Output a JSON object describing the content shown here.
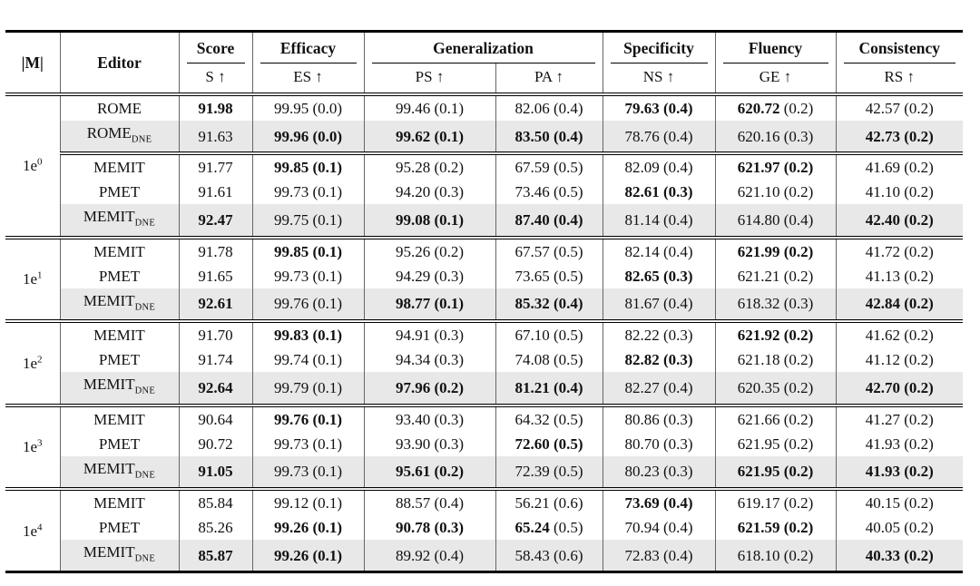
{
  "table": {
    "header": {
      "m_label": "|M|",
      "editor_label": "Editor",
      "metric_keys": [
        "s",
        "es",
        "ps",
        "pa",
        "ns",
        "ge",
        "rs"
      ],
      "metric_groups": [
        {
          "label": "Score",
          "subs": [
            "S ↑"
          ]
        },
        {
          "label": "Efficacy",
          "subs": [
            "ES ↑"
          ]
        },
        {
          "label": "Generalization",
          "subs": [
            "PS ↑",
            "PA ↑"
          ]
        },
        {
          "label": "Specificity",
          "subs": [
            "NS ↑"
          ]
        },
        {
          "label": "Fluency",
          "subs": [
            "GE ↑"
          ]
        },
        {
          "label": "Consistency",
          "subs": [
            "RS ↑"
          ]
        }
      ]
    },
    "colors": {
      "row_highlight": "#e8e8e8",
      "rule": "#000000",
      "divider": "#666666"
    },
    "bold_flag_legend": "0 = regular, 1 = value and stderr bold, 2 = value bold only",
    "groups": [
      {
        "size": "1e",
        "exp": "0",
        "rows": [
          {
            "editor": "ROME",
            "sub": "",
            "shaded": false,
            "cline": false,
            "cells": [
              [
                "91.98",
                "",
                1
              ],
              [
                "99.95",
                "(0.0)",
                0
              ],
              [
                "99.46",
                "(0.1)",
                0
              ],
              [
                "82.06",
                "(0.4)",
                0
              ],
              [
                "79.63",
                "(0.4)",
                1
              ],
              [
                "620.72",
                "(0.2)",
                2
              ],
              [
                "42.57",
                "(0.2)",
                0
              ]
            ]
          },
          {
            "editor": "ROME",
            "sub": "DNE",
            "shaded": true,
            "cline": false,
            "cells": [
              [
                "91.63",
                "",
                0
              ],
              [
                "99.96",
                "(0.0)",
                1
              ],
              [
                "99.62",
                "(0.1)",
                1
              ],
              [
                "83.50",
                "(0.4)",
                1
              ],
              [
                "78.76",
                "(0.4)",
                0
              ],
              [
                "620.16",
                "(0.3)",
                0
              ],
              [
                "42.73",
                "(0.2)",
                1
              ]
            ]
          },
          {
            "editor": "MEMIT",
            "sub": "",
            "shaded": false,
            "cline": true,
            "cells": [
              [
                "91.77",
                "",
                0
              ],
              [
                "99.85",
                "(0.1)",
                1
              ],
              [
                "95.28",
                "(0.2)",
                0
              ],
              [
                "67.59",
                "(0.5)",
                0
              ],
              [
                "82.09",
                "(0.4)",
                0
              ],
              [
                "621.97",
                "(0.2)",
                1
              ],
              [
                "41.69",
                "(0.2)",
                0
              ]
            ]
          },
          {
            "editor": "PMET",
            "sub": "",
            "shaded": false,
            "cline": false,
            "cells": [
              [
                "91.61",
                "",
                0
              ],
              [
                "99.73",
                "(0.1)",
                0
              ],
              [
                "94.20",
                "(0.3)",
                0
              ],
              [
                "73.46",
                "(0.5)",
                0
              ],
              [
                "82.61",
                "(0.3)",
                1
              ],
              [
                "621.10",
                "(0.2)",
                0
              ],
              [
                "41.10",
                "(0.2)",
                0
              ]
            ]
          },
          {
            "editor": "MEMIT",
            "sub": "DNE",
            "shaded": true,
            "cline": false,
            "cells": [
              [
                "92.47",
                "",
                1
              ],
              [
                "99.75",
                "(0.1)",
                0
              ],
              [
                "99.08",
                "(0.1)",
                1
              ],
              [
                "87.40",
                "(0.4)",
                1
              ],
              [
                "81.14",
                "(0.4)",
                0
              ],
              [
                "614.80",
                "(0.4)",
                0
              ],
              [
                "42.40",
                "(0.2)",
                1
              ]
            ]
          }
        ]
      },
      {
        "size": "1e",
        "exp": "1",
        "rows": [
          {
            "editor": "MEMIT",
            "sub": "",
            "shaded": false,
            "cline": false,
            "cells": [
              [
                "91.78",
                "",
                0
              ],
              [
                "99.85",
                "(0.1)",
                1
              ],
              [
                "95.26",
                "(0.2)",
                0
              ],
              [
                "67.57",
                "(0.5)",
                0
              ],
              [
                "82.14",
                "(0.4)",
                0
              ],
              [
                "621.99",
                "(0.2)",
                1
              ],
              [
                "41.72",
                "(0.2)",
                0
              ]
            ]
          },
          {
            "editor": "PMET",
            "sub": "",
            "shaded": false,
            "cline": false,
            "cells": [
              [
                "91.65",
                "",
                0
              ],
              [
                "99.73",
                "(0.1)",
                0
              ],
              [
                "94.29",
                "(0.3)",
                0
              ],
              [
                "73.65",
                "(0.5)",
                0
              ],
              [
                "82.65",
                "(0.3)",
                1
              ],
              [
                "621.21",
                "(0.2)",
                0
              ],
              [
                "41.13",
                "(0.2)",
                0
              ]
            ]
          },
          {
            "editor": "MEMIT",
            "sub": "DNE",
            "shaded": true,
            "cline": false,
            "cells": [
              [
                "92.61",
                "",
                1
              ],
              [
                "99.76",
                "(0.1)",
                0
              ],
              [
                "98.77",
                "(0.1)",
                1
              ],
              [
                "85.32",
                "(0.4)",
                1
              ],
              [
                "81.67",
                "(0.4)",
                0
              ],
              [
                "618.32",
                "(0.3)",
                0
              ],
              [
                "42.84",
                "(0.2)",
                1
              ]
            ]
          }
        ]
      },
      {
        "size": "1e",
        "exp": "2",
        "rows": [
          {
            "editor": "MEMIT",
            "sub": "",
            "shaded": false,
            "cline": false,
            "cells": [
              [
                "91.70",
                "",
                0
              ],
              [
                "99.83",
                "(0.1)",
                1
              ],
              [
                "94.91",
                "(0.3)",
                0
              ],
              [
                "67.10",
                "(0.5)",
                0
              ],
              [
                "82.22",
                "(0.3)",
                0
              ],
              [
                "621.92",
                "(0.2)",
                1
              ],
              [
                "41.62",
                "(0.2)",
                0
              ]
            ]
          },
          {
            "editor": "PMET",
            "sub": "",
            "shaded": false,
            "cline": false,
            "cells": [
              [
                "91.74",
                "",
                0
              ],
              [
                "99.74",
                "(0.1)",
                0
              ],
              [
                "94.34",
                "(0.3)",
                0
              ],
              [
                "74.08",
                "(0.5)",
                0
              ],
              [
                "82.82",
                "(0.3)",
                1
              ],
              [
                "621.18",
                "(0.2)",
                0
              ],
              [
                "41.12",
                "(0.2)",
                0
              ]
            ]
          },
          {
            "editor": "MEMIT",
            "sub": "DNE",
            "shaded": true,
            "cline": false,
            "cells": [
              [
                "92.64",
                "",
                1
              ],
              [
                "99.79",
                "(0.1)",
                0
              ],
              [
                "97.96",
                "(0.2)",
                1
              ],
              [
                "81.21",
                "(0.4)",
                1
              ],
              [
                "82.27",
                "(0.4)",
                0
              ],
              [
                "620.35",
                "(0.2)",
                0
              ],
              [
                "42.70",
                "(0.2)",
                1
              ]
            ]
          }
        ]
      },
      {
        "size": "1e",
        "exp": "3",
        "rows": [
          {
            "editor": "MEMIT",
            "sub": "",
            "shaded": false,
            "cline": false,
            "cells": [
              [
                "90.64",
                "",
                0
              ],
              [
                "99.76",
                "(0.1)",
                1
              ],
              [
                "93.40",
                "(0.3)",
                0
              ],
              [
                "64.32",
                "(0.5)",
                0
              ],
              [
                "80.86",
                "(0.3)",
                0
              ],
              [
                "621.66",
                "(0.2)",
                0
              ],
              [
                "41.27",
                "(0.2)",
                0
              ]
            ]
          },
          {
            "editor": "PMET",
            "sub": "",
            "shaded": false,
            "cline": false,
            "cells": [
              [
                "90.72",
                "",
                0
              ],
              [
                "99.73",
                "(0.1)",
                0
              ],
              [
                "93.90",
                "(0.3)",
                0
              ],
              [
                "72.60",
                "(0.5)",
                1
              ],
              [
                "80.70",
                "(0.3)",
                0
              ],
              [
                "621.95",
                "(0.2)",
                0
              ],
              [
                "41.93",
                "(0.2)",
                0
              ]
            ]
          },
          {
            "editor": "MEMIT",
            "sub": "DNE",
            "shaded": true,
            "cline": false,
            "cells": [
              [
                "91.05",
                "",
                1
              ],
              [
                "99.73",
                "(0.1)",
                0
              ],
              [
                "95.61",
                "(0.2)",
                1
              ],
              [
                "72.39",
                "(0.5)",
                0
              ],
              [
                "80.23",
                "(0.3)",
                0
              ],
              [
                "621.95",
                "(0.2)",
                1
              ],
              [
                "41.93",
                "(0.2)",
                1
              ]
            ]
          }
        ]
      },
      {
        "size": "1e",
        "exp": "4",
        "rows": [
          {
            "editor": "MEMIT",
            "sub": "",
            "shaded": false,
            "cline": false,
            "cells": [
              [
                "85.84",
                "",
                0
              ],
              [
                "99.12",
                "(0.1)",
                0
              ],
              [
                "88.57",
                "(0.4)",
                0
              ],
              [
                "56.21",
                "(0.6)",
                0
              ],
              [
                "73.69",
                "(0.4)",
                1
              ],
              [
                "619.17",
                "(0.2)",
                0
              ],
              [
                "40.15",
                "(0.2)",
                0
              ]
            ]
          },
          {
            "editor": "PMET",
            "sub": "",
            "shaded": false,
            "cline": false,
            "cells": [
              [
                "85.26",
                "",
                0
              ],
              [
                "99.26",
                "(0.1)",
                1
              ],
              [
                "90.78",
                "(0.3)",
                1
              ],
              [
                "65.24",
                "(0.5)",
                2
              ],
              [
                "70.94",
                "(0.4)",
                0
              ],
              [
                "621.59",
                "(0.2)",
                1
              ],
              [
                "40.05",
                "(0.2)",
                0
              ]
            ]
          },
          {
            "editor": "MEMIT",
            "sub": "DNE",
            "shaded": true,
            "cline": false,
            "cells": [
              [
                "85.87",
                "",
                1
              ],
              [
                "99.26",
                "(0.1)",
                1
              ],
              [
                "89.92",
                "(0.4)",
                0
              ],
              [
                "58.43",
                "(0.6)",
                0
              ],
              [
                "72.83",
                "(0.4)",
                0
              ],
              [
                "618.10",
                "(0.2)",
                0
              ],
              [
                "40.33",
                "(0.2)",
                1
              ]
            ]
          }
        ]
      }
    ]
  }
}
